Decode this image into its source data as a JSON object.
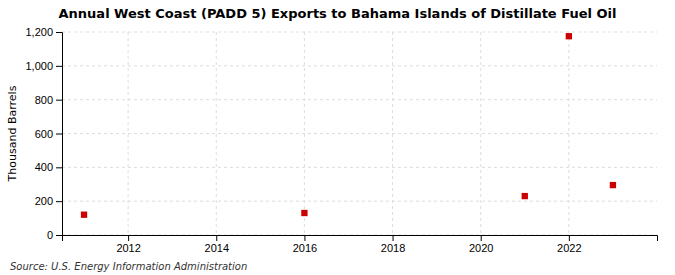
{
  "chart_data": {
    "type": "scatter",
    "title": "Annual West Coast (PADD 5) Exports to Bahama Islands of Distillate Fuel Oil",
    "ylabel": "Thousand Barrels",
    "annotations": [
      "Source: U.S. Energy Information Administration"
    ],
    "x": [
      2011,
      2016,
      2021,
      2022,
      2023
    ],
    "values": [
      120,
      130,
      230,
      1175,
      295
    ],
    "color": "#cc0000",
    "marker": "square",
    "xlim": [
      2010.5,
      2024
    ],
    "ylim": [
      0,
      1200
    ],
    "xticks": [
      2012,
      2014,
      2016,
      2018,
      2020,
      2022
    ],
    "yticks": [
      0,
      200,
      400,
      600,
      800,
      {
        "value": 1000,
        "label": "1,000"
      },
      {
        "value": 1200,
        "label": "1,200"
      }
    ],
    "grid": true
  }
}
